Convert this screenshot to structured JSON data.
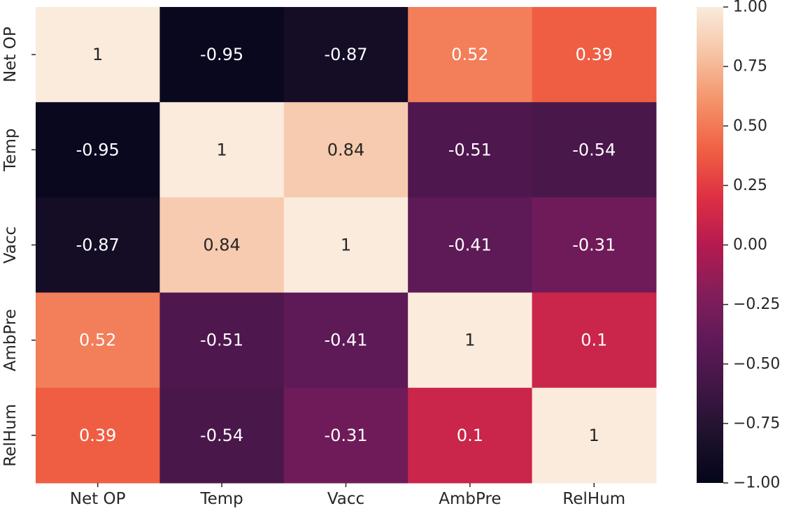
{
  "chart_data": {
    "type": "heatmap",
    "title": "",
    "xlabel": "",
    "ylabel": "",
    "x_categories": [
      "Net OP",
      "Temp",
      "Vacc",
      "AmbPre",
      "RelHum"
    ],
    "y_categories": [
      "Net OP",
      "Temp",
      "Vacc",
      "AmbPre",
      "RelHum"
    ],
    "values": [
      [
        1,
        -0.95,
        -0.87,
        0.52,
        0.39
      ],
      [
        -0.95,
        1,
        0.84,
        -0.51,
        -0.54
      ],
      [
        -0.87,
        0.84,
        1,
        -0.41,
        -0.31
      ],
      [
        0.52,
        -0.51,
        -0.41,
        1,
        0.1
      ],
      [
        0.39,
        -0.54,
        -0.31,
        0.1,
        1
      ]
    ],
    "annotations": [
      [
        "1",
        "-0.95",
        "-0.87",
        "0.52",
        "0.39"
      ],
      [
        "-0.95",
        "1",
        "0.84",
        "-0.51",
        "-0.54"
      ],
      [
        "-0.87",
        "0.84",
        "1",
        "-0.41",
        "-0.31"
      ],
      [
        "0.52",
        "-0.51",
        "-0.41",
        "1",
        "0.1"
      ],
      [
        "0.39",
        "-0.54",
        "-0.31",
        "0.1",
        "1"
      ]
    ],
    "colorbar": {
      "range": [
        -1,
        1
      ],
      "ticks": [
        1,
        0.75,
        0.5,
        0.25,
        0,
        -0.25,
        -0.5,
        -0.75,
        -1
      ],
      "tick_labels": [
        "1.00",
        "0.75",
        "0.50",
        "0.25",
        "0.00",
        "−0.25",
        "−0.50",
        "−0.75",
        "−1.00"
      ],
      "colormap": "rocket"
    }
  }
}
